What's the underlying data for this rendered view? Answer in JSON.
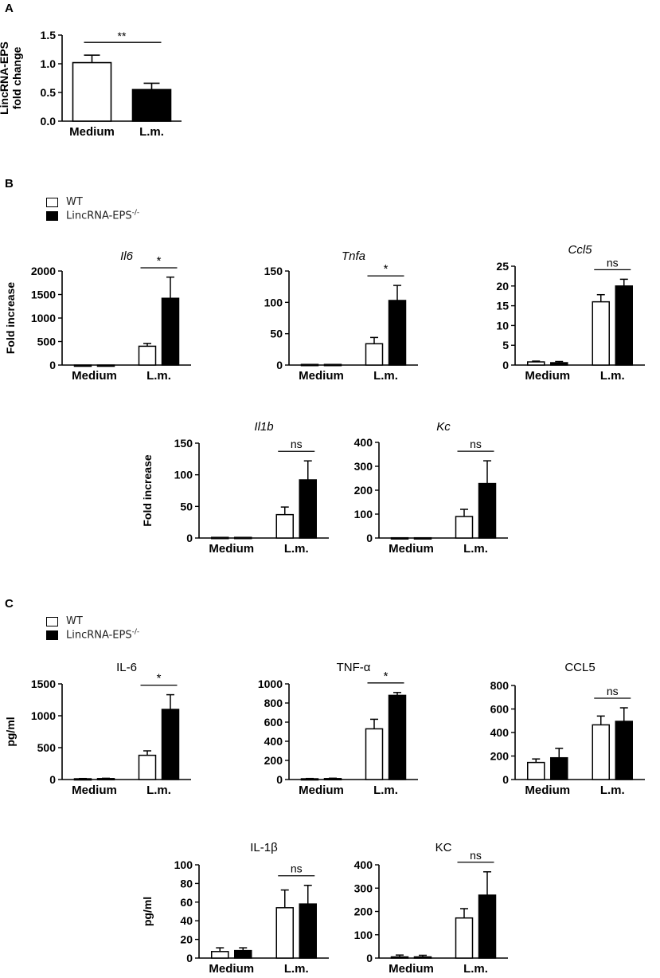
{
  "panels": {
    "a": {
      "letter": "A"
    },
    "b": {
      "letter": "B"
    },
    "c": {
      "letter": "C"
    }
  },
  "legend_b": {
    "wt": "WT",
    "ko_base": "LincRNA-EPS",
    "ko_sup": "-/-"
  },
  "legend_c": {
    "wt": "WT",
    "ko_base": "LincRNA-EPS",
    "ko_sup": "-/-"
  },
  "colors": {
    "wt_fill": "#ffffff",
    "ko_fill": "#000000",
    "stroke": "#000000"
  },
  "chart_data": [
    {
      "id": "a",
      "type": "bar",
      "title": "",
      "title_italic": false,
      "ylabel": [
        "LincRNA-EPS",
        "fold change"
      ],
      "categories": [
        "Medium",
        "L.m."
      ],
      "ylim": [
        0,
        1.5
      ],
      "yticks": [
        "0.0",
        "0.5",
        "1.0",
        "1.5"
      ],
      "series": [
        {
          "values": [
            1.02,
            0.55
          ],
          "errors": [
            0.13,
            0.11
          ],
          "fills": [
            "#ffffff",
            "#000000"
          ]
        }
      ],
      "significance": [
        {
          "category": "span",
          "label": "**"
        }
      ]
    },
    {
      "id": "b1",
      "type": "bar",
      "title": "Il6",
      "title_italic": true,
      "ylabel": [
        "Fold increase"
      ],
      "categories": [
        "Medium",
        "L.m."
      ],
      "ylim": [
        0,
        2000
      ],
      "yticks": [
        "0",
        "500",
        "1000",
        "1500",
        "2000"
      ],
      "series": [
        {
          "name": "WT",
          "values": [
            0,
            400
          ],
          "errors": [
            0,
            60
          ]
        },
        {
          "name": "LincRNA-EPS-/-",
          "values": [
            0,
            1420
          ],
          "errors": [
            0,
            450
          ]
        }
      ],
      "significance": [
        {
          "category": 1,
          "label": "*"
        }
      ]
    },
    {
      "id": "b2",
      "type": "bar",
      "title": "Tnfa",
      "title_italic": true,
      "ylabel": [],
      "categories": [
        "Medium",
        "L.m."
      ],
      "ylim": [
        0,
        150
      ],
      "yticks": [
        "0",
        "50",
        "100",
        "150"
      ],
      "series": [
        {
          "name": "WT",
          "values": [
            1,
            34
          ],
          "errors": [
            0,
            10
          ]
        },
        {
          "name": "LincRNA-EPS-/-",
          "values": [
            1,
            103
          ],
          "errors": [
            0,
            24
          ]
        }
      ],
      "significance": [
        {
          "category": 1,
          "label": "*"
        }
      ]
    },
    {
      "id": "b3",
      "type": "bar",
      "title": "Ccl5",
      "title_italic": true,
      "ylabel": [],
      "categories": [
        "Medium",
        "L.m."
      ],
      "ylim": [
        0,
        25
      ],
      "yticks": [
        "0",
        "5",
        "10",
        "15",
        "20",
        "25"
      ],
      "series": [
        {
          "name": "WT",
          "values": [
            0.8,
            16
          ],
          "errors": [
            0.2,
            1.8
          ]
        },
        {
          "name": "LincRNA-EPS-/-",
          "values": [
            0.6,
            20
          ],
          "errors": [
            0.3,
            1.7
          ]
        }
      ],
      "significance": [
        {
          "category": 1,
          "label": "ns"
        }
      ]
    },
    {
      "id": "b4",
      "type": "bar",
      "title": "Il1b",
      "title_italic": true,
      "ylabel": [
        "Fold increase"
      ],
      "categories": [
        "Medium",
        "L.m."
      ],
      "ylim": [
        0,
        150
      ],
      "yticks": [
        "0",
        "50",
        "100",
        "150"
      ],
      "series": [
        {
          "name": "WT",
          "values": [
            1,
            37
          ],
          "errors": [
            0,
            12
          ]
        },
        {
          "name": "LincRNA-EPS-/-",
          "values": [
            1,
            92
          ],
          "errors": [
            0,
            30
          ]
        }
      ],
      "significance": [
        {
          "category": 1,
          "label": "ns"
        }
      ]
    },
    {
      "id": "b5",
      "type": "bar",
      "title": "Kc",
      "title_italic": true,
      "ylabel": [],
      "categories": [
        "Medium",
        "L.m."
      ],
      "ylim": [
        0,
        400
      ],
      "yticks": [
        "0",
        "100",
        "200",
        "300",
        "400"
      ],
      "series": [
        {
          "name": "WT",
          "values": [
            1,
            90
          ],
          "errors": [
            0,
            30
          ]
        },
        {
          "name": "LincRNA-EPS-/-",
          "values": [
            1,
            228
          ],
          "errors": [
            0,
            95
          ]
        }
      ],
      "significance": [
        {
          "category": 1,
          "label": "ns"
        }
      ]
    },
    {
      "id": "c1",
      "type": "bar",
      "title": "IL-6",
      "title_italic": false,
      "ylabel": [
        "pg/ml"
      ],
      "categories": [
        "Medium",
        "L.m."
      ],
      "ylim": [
        0,
        1500
      ],
      "yticks": [
        "0",
        "500",
        "1000",
        "1500"
      ],
      "series": [
        {
          "name": "WT",
          "values": [
            12,
            380
          ],
          "errors": [
            4,
            70
          ]
        },
        {
          "name": "LincRNA-EPS-/-",
          "values": [
            15,
            1100
          ],
          "errors": [
            5,
            230
          ]
        }
      ],
      "significance": [
        {
          "category": 1,
          "label": "*"
        }
      ]
    },
    {
      "id": "c2",
      "type": "bar",
      "title": "TNF-α",
      "title_italic": false,
      "ylabel": [],
      "categories": [
        "Medium",
        "L.m."
      ],
      "ylim": [
        0,
        1000
      ],
      "yticks": [
        "0",
        "200",
        "400",
        "600",
        "800",
        "1000"
      ],
      "series": [
        {
          "name": "WT",
          "values": [
            8,
            530
          ],
          "errors": [
            3,
            100
          ]
        },
        {
          "name": "LincRNA-EPS-/-",
          "values": [
            10,
            880
          ],
          "errors": [
            4,
            30
          ]
        }
      ],
      "significance": [
        {
          "category": 1,
          "label": "*"
        }
      ]
    },
    {
      "id": "c3",
      "type": "bar",
      "title": "CCL5",
      "title_italic": false,
      "ylabel": [],
      "categories": [
        "Medium",
        "L.m."
      ],
      "ylim": [
        0,
        800
      ],
      "yticks": [
        "0",
        "200",
        "400",
        "600",
        "800"
      ],
      "series": [
        {
          "name": "WT",
          "values": [
            145,
            465
          ],
          "errors": [
            30,
            75
          ]
        },
        {
          "name": "LincRNA-EPS-/-",
          "values": [
            185,
            495
          ],
          "errors": [
            80,
            115
          ]
        }
      ],
      "significance": [
        {
          "category": 1,
          "label": "ns"
        }
      ]
    },
    {
      "id": "c4",
      "type": "bar",
      "title": "IL-1β",
      "title_italic": false,
      "ylabel": [
        "pg/ml"
      ],
      "categories": [
        "Medium",
        "L.m."
      ],
      "ylim": [
        0,
        100
      ],
      "yticks": [
        "0",
        "20",
        "40",
        "60",
        "80",
        "100"
      ],
      "series": [
        {
          "name": "WT",
          "values": [
            7,
            54
          ],
          "errors": [
            4,
            19
          ]
        },
        {
          "name": "LincRNA-EPS-/-",
          "values": [
            8,
            58
          ],
          "errors": [
            3,
            20
          ]
        }
      ],
      "significance": [
        {
          "category": 1,
          "label": "ns"
        }
      ]
    },
    {
      "id": "c5",
      "type": "bar",
      "title": "KC",
      "title_italic": false,
      "ylabel": [],
      "categories": [
        "Medium",
        "L.m."
      ],
      "ylim": [
        0,
        400
      ],
      "yticks": [
        "0",
        "100",
        "200",
        "300",
        "400"
      ],
      "series": [
        {
          "name": "WT",
          "values": [
            5,
            172
          ],
          "errors": [
            8,
            40
          ]
        },
        {
          "name": "LincRNA-EPS-/-",
          "values": [
            5,
            270
          ],
          "errors": [
            7,
            100
          ]
        }
      ],
      "significance": [
        {
          "category": 1,
          "label": "ns"
        }
      ]
    }
  ]
}
